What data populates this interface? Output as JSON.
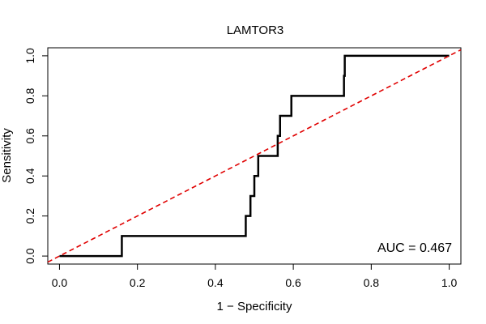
{
  "chart_data": {
    "type": "line",
    "title": "LAMTOR3",
    "xlabel": "1 − Specificity",
    "ylabel": "Sensitivity",
    "xlim": [
      -0.03,
      1.03
    ],
    "ylim": [
      -0.04,
      1.04
    ],
    "x_ticks": [
      0.0,
      0.2,
      0.4,
      0.6,
      0.8,
      1.0
    ],
    "x_tick_labels": [
      "0.0",
      "0.2",
      "0.4",
      "0.6",
      "0.8",
      "1.0"
    ],
    "y_ticks": [
      0.0,
      0.2,
      0.4,
      0.6,
      0.8,
      1.0
    ],
    "y_tick_labels": [
      "0.0",
      "0.2",
      "0.4",
      "0.6",
      "0.8",
      "1.0"
    ],
    "grid": false,
    "annotation": "AUC = 0.467",
    "series": [
      {
        "type": "step",
        "color": "#000000",
        "points": [
          [
            0.0,
            0.0
          ],
          [
            0.16,
            0.0
          ],
          [
            0.16,
            0.1
          ],
          [
            0.478,
            0.1
          ],
          [
            0.478,
            0.2
          ],
          [
            0.49,
            0.2
          ],
          [
            0.49,
            0.3
          ],
          [
            0.5,
            0.3
          ],
          [
            0.5,
            0.4
          ],
          [
            0.51,
            0.4
          ],
          [
            0.51,
            0.5
          ],
          [
            0.56,
            0.5
          ],
          [
            0.56,
            0.6
          ],
          [
            0.566,
            0.6
          ],
          [
            0.566,
            0.7
          ],
          [
            0.595,
            0.7
          ],
          [
            0.595,
            0.8
          ],
          [
            0.73,
            0.8
          ],
          [
            0.73,
            0.9
          ],
          [
            0.732,
            0.9
          ],
          [
            0.732,
            1.0
          ],
          [
            1.0,
            1.0
          ]
        ]
      },
      {
        "type": "reference",
        "color": "#e00000",
        "dashed": true,
        "points": [
          [
            -0.03,
            -0.03
          ],
          [
            1.03,
            1.03
          ]
        ]
      }
    ]
  }
}
